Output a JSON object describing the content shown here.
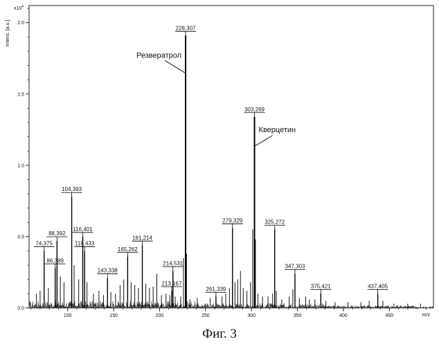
{
  "caption": "Фиг. 3",
  "chart_data": {
    "type": "line",
    "x_unit_label": "m/z",
    "ylabel": "Intens. [a.u.]",
    "y_multiplier": "x10^4",
    "y_multiplier_base": "x10",
    "y_multiplier_exp": "4",
    "xlim": [
      58,
      498
    ],
    "ylim": [
      0,
      2.12
    ],
    "x_ticks": [
      100,
      150,
      200,
      250,
      300,
      350,
      400,
      450
    ],
    "x_tick_labels": [
      "100",
      "150",
      "200",
      "250",
      "300",
      "350",
      "400",
      "450"
    ],
    "y_ticks": [
      0.0,
      0.5,
      1.0,
      1.5,
      2.0
    ],
    "y_tick_labels": [
      "0.0",
      "0.5",
      "1.0",
      "1.5",
      "2.0"
    ],
    "peaks": [
      {
        "mz": 74.375,
        "label": "74,375",
        "intensity": 0.4
      },
      {
        "mz": 86.389,
        "label": "86,389",
        "intensity": 0.28
      },
      {
        "mz": 88.392,
        "label": "88,392",
        "intensity": 0.47
      },
      {
        "mz": 104.393,
        "label": "104,393",
        "intensity": 0.78
      },
      {
        "mz": 116.401,
        "label": "116,401",
        "intensity": 0.5
      },
      {
        "mz": 118.433,
        "label": "118,433",
        "intensity": 0.4
      },
      {
        "mz": 143.338,
        "label": "143,338",
        "intensity": 0.21
      },
      {
        "mz": 165.262,
        "label": "165,262",
        "intensity": 0.36
      },
      {
        "mz": 181.214,
        "label": "181,214",
        "intensity": 0.44
      },
      {
        "mz": 213.167,
        "label": "213,167",
        "intensity": 0.12
      },
      {
        "mz": 214.531,
        "label": "214,531",
        "intensity": 0.26
      },
      {
        "mz": 228.307,
        "label": "228,307",
        "intensity": 1.91
      },
      {
        "mz": 261.339,
        "label": "261,339",
        "intensity": 0.08
      },
      {
        "mz": 279.329,
        "label": "279,329",
        "intensity": 0.56
      },
      {
        "mz": 303.269,
        "label": "303,269",
        "intensity": 1.34
      },
      {
        "mz": 325.272,
        "label": "325,272",
        "intensity": 0.55
      },
      {
        "mz": 347.303,
        "label": "347,303",
        "intensity": 0.24
      },
      {
        "mz": 375.421,
        "label": "375,421",
        "intensity": 0.1
      },
      {
        "mz": 437.405,
        "label": "437,405",
        "intensity": 0.1
      }
    ],
    "unlabeled_peaks": [
      {
        "mz": 66,
        "intensity": 0.1
      },
      {
        "mz": 70,
        "intensity": 0.12
      },
      {
        "mz": 79,
        "intensity": 0.14
      },
      {
        "mz": 92,
        "intensity": 0.22
      },
      {
        "mz": 96,
        "intensity": 0.18
      },
      {
        "mz": 107,
        "intensity": 0.3
      },
      {
        "mz": 112,
        "intensity": 0.2
      },
      {
        "mz": 121,
        "intensity": 0.18
      },
      {
        "mz": 128,
        "intensity": 0.1
      },
      {
        "mz": 134,
        "intensity": 0.12
      },
      {
        "mz": 139,
        "intensity": 0.09
      },
      {
        "mz": 147,
        "intensity": 0.11
      },
      {
        "mz": 152,
        "intensity": 0.1
      },
      {
        "mz": 157,
        "intensity": 0.16
      },
      {
        "mz": 161,
        "intensity": 0.2
      },
      {
        "mz": 169,
        "intensity": 0.18
      },
      {
        "mz": 173,
        "intensity": 0.16
      },
      {
        "mz": 177,
        "intensity": 0.14
      },
      {
        "mz": 185,
        "intensity": 0.17
      },
      {
        "mz": 189,
        "intensity": 0.14
      },
      {
        "mz": 193,
        "intensity": 0.15
      },
      {
        "mz": 197,
        "intensity": 0.24
      },
      {
        "mz": 202,
        "intensity": 0.09
      },
      {
        "mz": 207,
        "intensity": 0.1
      },
      {
        "mz": 211,
        "intensity": 0.09
      },
      {
        "mz": 217,
        "intensity": 0.08
      },
      {
        "mz": 223,
        "intensity": 0.08
      },
      {
        "mz": 226,
        "intensity": 0.35
      },
      {
        "mz": 229.3,
        "intensity": 0.38
      },
      {
        "mz": 233,
        "intensity": 0.06
      },
      {
        "mz": 241,
        "intensity": 0.07
      },
      {
        "mz": 255,
        "intensity": 0.07
      },
      {
        "mz": 268,
        "intensity": 0.08
      },
      {
        "mz": 272,
        "intensity": 0.1
      },
      {
        "mz": 276,
        "intensity": 0.14
      },
      {
        "mz": 282,
        "intensity": 0.18
      },
      {
        "mz": 285,
        "intensity": 0.2
      },
      {
        "mz": 288,
        "intensity": 0.26
      },
      {
        "mz": 291,
        "intensity": 0.14
      },
      {
        "mz": 295,
        "intensity": 0.12
      },
      {
        "mz": 299,
        "intensity": 0.18
      },
      {
        "mz": 301.3,
        "intensity": 0.55
      },
      {
        "mz": 304.3,
        "intensity": 0.48
      },
      {
        "mz": 307,
        "intensity": 0.1
      },
      {
        "mz": 312,
        "intensity": 0.08
      },
      {
        "mz": 318,
        "intensity": 0.08
      },
      {
        "mz": 323,
        "intensity": 0.1
      },
      {
        "mz": 327,
        "intensity": 0.12
      },
      {
        "mz": 333,
        "intensity": 0.06
      },
      {
        "mz": 341,
        "intensity": 0.08
      },
      {
        "mz": 345,
        "intensity": 0.13
      },
      {
        "mz": 352,
        "intensity": 0.07
      },
      {
        "mz": 359,
        "intensity": 0.08
      },
      {
        "mz": 363,
        "intensity": 0.06
      },
      {
        "mz": 369,
        "intensity": 0.06
      },
      {
        "mz": 381,
        "intensity": 0.05
      },
      {
        "mz": 391,
        "intensity": 0.04
      },
      {
        "mz": 405,
        "intensity": 0.04
      },
      {
        "mz": 419,
        "intensity": 0.04
      },
      {
        "mz": 428,
        "intensity": 0.05
      },
      {
        "mz": 443,
        "intensity": 0.05
      },
      {
        "mz": 455,
        "intensity": 0.03
      },
      {
        "mz": 470,
        "intensity": 0.03
      },
      {
        "mz": 484,
        "intensity": 0.03
      }
    ],
    "annotations": [
      {
        "text": "Резвератрол",
        "target_mz": 228.307
      },
      {
        "text": "Кверцетин",
        "target_mz": 303.269
      }
    ],
    "grid": false
  }
}
